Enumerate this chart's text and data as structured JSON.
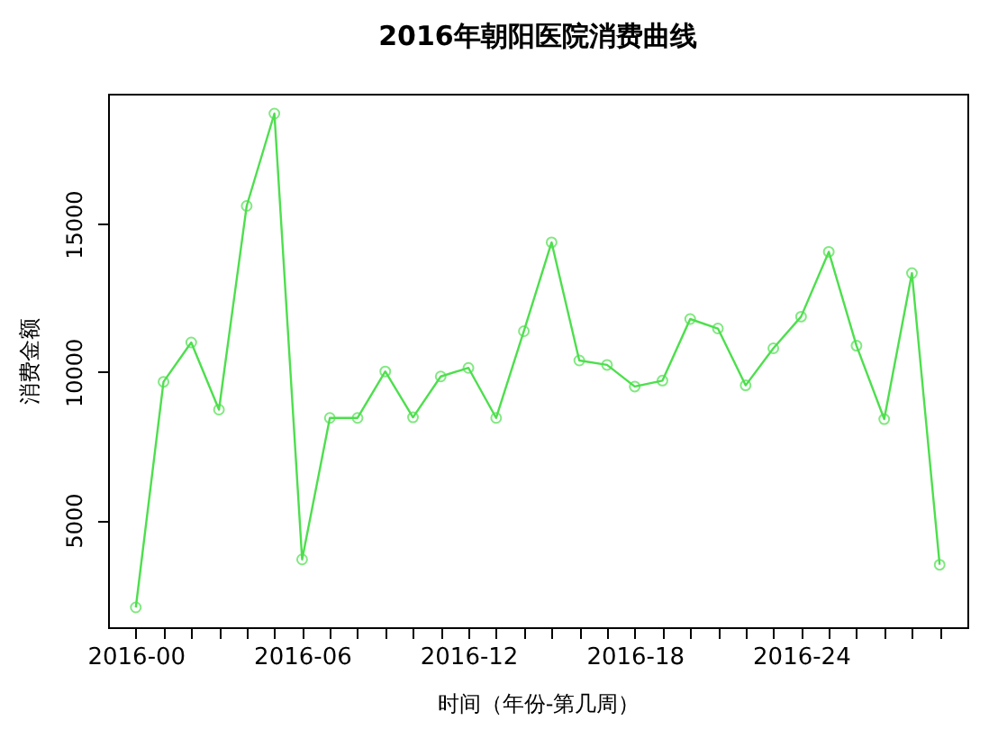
{
  "chart_data": {
    "type": "line",
    "title": "2016年朝阳医院消费曲线",
    "xlabel": "时间（年份-第几周）",
    "ylabel": "消费金额",
    "categories": [
      "2016-00",
      null,
      null,
      null,
      null,
      null,
      "2016-06",
      null,
      null,
      null,
      null,
      null,
      "2016-12",
      null,
      null,
      null,
      null,
      null,
      "2016-18",
      null,
      null,
      null,
      null,
      null,
      "2016-24",
      null,
      null,
      null,
      null,
      null
    ],
    "series": [
      {
        "color": "#4ddf4d",
        "values": [
          2050,
          9670,
          11000,
          8730,
          15610,
          18730,
          3670,
          8450,
          8450,
          10020,
          8470,
          9850,
          10140,
          8450,
          11380,
          14380,
          10390,
          10240,
          9510,
          9710,
          11790,
          11470,
          9550,
          10800,
          11870,
          14060,
          10890,
          8410,
          13340,
          3490
        ]
      }
    ],
    "ylim": [
      1380,
      19400
    ],
    "yticks": [
      5000,
      10000,
      15000
    ],
    "grid": false,
    "marker": "circle",
    "line_style": "solid"
  }
}
